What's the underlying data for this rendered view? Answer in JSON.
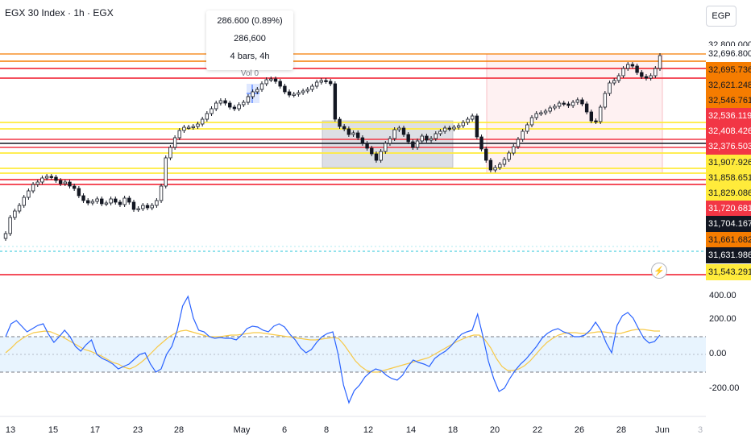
{
  "header": {
    "title": "EGX 30 Index · 1h · EGX"
  },
  "measure": {
    "change": "286.600 (0.89%) 286,600",
    "bars": "4 bars, 4h",
    "vol": "Vol 0"
  },
  "price_axis": {
    "currency": "EGP",
    "labels": [
      {
        "text": "32,800.000",
        "bg": "",
        "fg": "#131722"
      },
      {
        "text": "32,696.800",
        "bg": "#ffffff",
        "fg": "#131722"
      },
      {
        "text": "32,695.736",
        "bg": "#f57c00",
        "fg": "#131722"
      },
      {
        "text": "32,621.248",
        "bg": "#f57c00",
        "fg": "#131722"
      },
      {
        "text": "32,546.761",
        "bg": "#f57c00",
        "fg": "#131722"
      },
      {
        "text": "32,536.119",
        "bg": "#f23645",
        "fg": "#ffffff"
      },
      {
        "text": "32,408.426",
        "bg": "#f23645",
        "fg": "#ffffff"
      },
      {
        "text": "32,376.503",
        "bg": "#f23645",
        "fg": "#ffffff"
      },
      {
        "text": "31,907.926",
        "bg": "#ffeb3b",
        "fg": "#131722"
      },
      {
        "text": "31,858.651",
        "bg": "#ffeb3b",
        "fg": "#131722"
      },
      {
        "text": "31,829.086",
        "bg": "#ffeb3b",
        "fg": "#131722"
      },
      {
        "text": "31,720.681",
        "bg": "#f23645",
        "fg": "#ffffff"
      },
      {
        "text": "31,704.167",
        "bg": "#131722",
        "fg": "#ffffff"
      },
      {
        "text": "31,661.682",
        "bg": "#f57c00",
        "fg": "#131722"
      },
      {
        "text": "31,631.986",
        "bg": "#131722",
        "fg": "#ffffff"
      },
      {
        "text": "31,543.291",
        "bg": "#ffeb3b",
        "fg": "#131722"
      }
    ]
  },
  "rsi_axis": {
    "labels": [
      "400.00",
      "200.00",
      "0.00",
      "-200.00"
    ]
  },
  "time_axis": {
    "labels": [
      "13",
      "15",
      "17",
      "23",
      "28",
      "May",
      "6",
      "8",
      "12",
      "14",
      "18",
      "20",
      "22",
      "26",
      "28",
      "Jun",
      "3"
    ]
  },
  "colors": {
    "red_line": "#f23645",
    "orange_line": "#f57c00",
    "yellow_line": "#ffeb3b",
    "rsi": "#2962ff",
    "signal": "#f7c948"
  },
  "icons": {
    "flash": "flash-icon"
  }
}
